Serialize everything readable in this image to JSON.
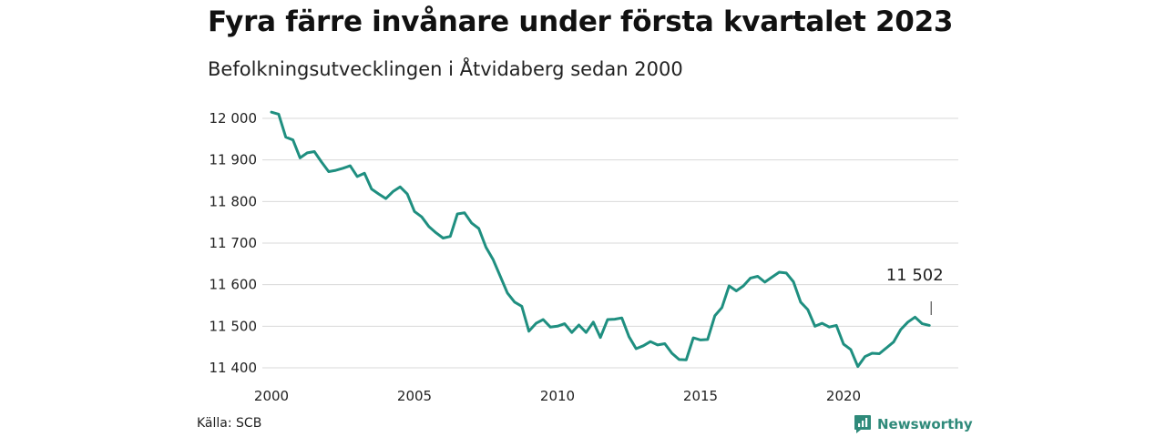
{
  "title": "Fyra färre invånare under första kvartalet 2023",
  "subtitle": "Befolkningsutvecklingen i Åtvidaberg sedan 2000",
  "source": "Källa: SCB",
  "brand": "Newsworthy",
  "colors": {
    "line": "#1f8f80",
    "grid": "#d9d9d9",
    "brand": "#2f8a7a"
  },
  "chart_data": {
    "type": "line",
    "title": "Fyra färre invånare under första kvartalet 2023",
    "subtitle": "Befolkningsutvecklingen i Åtvidaberg sedan 2000",
    "xlabel": "",
    "ylabel": "",
    "xlim": [
      2000,
      2024
    ],
    "ylim": [
      11380,
      12020
    ],
    "x_ticks": [
      2000,
      2005,
      2010,
      2015,
      2020
    ],
    "x_tick_labels": [
      "2000",
      "2005",
      "2010",
      "2015",
      "2020"
    ],
    "y_ticks": [
      11400,
      11500,
      11600,
      11700,
      11800,
      11900,
      12000
    ],
    "y_tick_labels": [
      "11 400",
      "11 500",
      "11 600",
      "11 700",
      "11 800",
      "11 900",
      "12 000"
    ],
    "grid": true,
    "annotation": {
      "label": "11 502",
      "x": 2023.0,
      "y": 11502
    },
    "series": [
      {
        "x": [
          2000.0,
          2000.25,
          2000.5,
          2000.75,
          2001.0,
          2001.25,
          2001.5,
          2001.75,
          2002.0,
          2002.25,
          2002.5,
          2002.75,
          2003.0,
          2003.25,
          2003.5,
          2003.75,
          2004.0,
          2004.25,
          2004.5,
          2004.75,
          2005.0,
          2005.25,
          2005.5,
          2005.75,
          2006.0,
          2006.25,
          2006.5,
          2006.75,
          2007.0,
          2007.25,
          2007.5,
          2007.75,
          2008.0,
          2008.25,
          2008.5,
          2008.75,
          2009.0,
          2009.25,
          2009.5,
          2009.75,
          2010.0,
          2010.25,
          2010.5,
          2010.75,
          2011.0,
          2011.25,
          2011.5,
          2011.75,
          2012.0,
          2012.25,
          2012.5,
          2012.75,
          2013.0,
          2013.25,
          2013.5,
          2013.75,
          2014.0,
          2014.25,
          2014.5,
          2014.75,
          2015.0,
          2015.25,
          2015.5,
          2015.75,
          2016.0,
          2016.25,
          2016.5,
          2016.75,
          2017.0,
          2017.25,
          2017.5,
          2017.75,
          2018.0,
          2018.25,
          2018.5,
          2018.75,
          2019.0,
          2019.25,
          2019.5,
          2019.75,
          2020.0,
          2020.25,
          2020.5,
          2020.75,
          2021.0,
          2021.25,
          2021.5,
          2021.75,
          2022.0,
          2022.25,
          2022.5,
          2022.75,
          2023.0
        ],
        "values": [
          12015,
          12010,
          11955,
          11948,
          11905,
          11917,
          11920,
          11895,
          11872,
          11875,
          11880,
          11886,
          11860,
          11868,
          11830,
          11818,
          11807,
          11824,
          11835,
          11818,
          11776,
          11763,
          11740,
          11725,
          11712,
          11716,
          11770,
          11773,
          11748,
          11735,
          11690,
          11660,
          11620,
          11580,
          11558,
          11548,
          11488,
          11507,
          11516,
          11498,
          11500,
          11506,
          11485,
          11503,
          11485,
          11510,
          11473,
          11516,
          11517,
          11520,
          11475,
          11446,
          11453,
          11463,
          11455,
          11458,
          11435,
          11420,
          11419,
          11472,
          11467,
          11468,
          11525,
          11545,
          11597,
          11585,
          11597,
          11616,
          11620,
          11606,
          11618,
          11630,
          11628,
          11607,
          11558,
          11540,
          11500,
          11507,
          11498,
          11502,
          11457,
          11444,
          11403,
          11427,
          11435,
          11434,
          11448,
          11462,
          11492,
          11510,
          11522,
          11506,
          11502
        ]
      }
    ]
  }
}
